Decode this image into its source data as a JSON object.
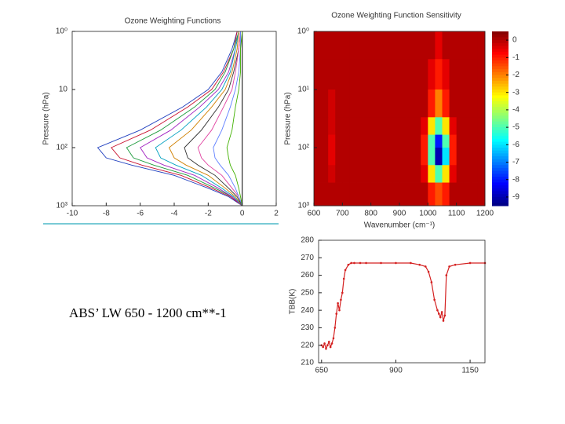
{
  "caption": "ABS’ LW 650 - 1200 cm**-1",
  "chart_data": [
    {
      "type": "profile",
      "title": "Ozone Weighting Functions",
      "ylabel": "Pressure (hPa)",
      "xlim": [
        -10,
        2
      ],
      "xticks": [
        -10,
        -8,
        -6,
        -4,
        -2,
        0,
        2
      ],
      "ylim": [
        1,
        1000
      ],
      "ylog": true,
      "yinvert": true,
      "yticks": [
        {
          "value": 1,
          "label": "10⁰"
        },
        10,
        {
          "value": 100,
          "label": "10²"
        },
        {
          "value": 1000,
          "label": "10³"
        }
      ],
      "y": [
        1,
        2,
        5,
        10,
        20,
        50,
        100,
        150,
        200,
        300,
        500,
        700,
        1000
      ],
      "series": [
        {
          "color": "#1f3fbf",
          "values": [
            -0.3,
            -0.6,
            -1.2,
            -2,
            -3.5,
            -6,
            -8.5,
            -8,
            -6.5,
            -4,
            -2,
            -0.8,
            0
          ]
        },
        {
          "color": "#c8102e",
          "values": [
            -0.3,
            -0.5,
            -1.1,
            -1.8,
            -3.2,
            -5.4,
            -7.7,
            -7.2,
            -5.9,
            -3.6,
            -1.8,
            -0.7,
            0
          ]
        },
        {
          "color": "#1a9a3a",
          "values": [
            -0.2,
            -0.5,
            -1,
            -1.6,
            -2.8,
            -4.8,
            -6.8,
            -6.4,
            -5.2,
            -3.2,
            -1.6,
            -0.6,
            0
          ]
        },
        {
          "color": "#a020c0",
          "values": [
            -0.2,
            -0.4,
            -0.8,
            -1.4,
            -2.5,
            -4.2,
            -6,
            -5.6,
            -4.6,
            -2.8,
            -1.4,
            -0.6,
            0
          ]
        },
        {
          "color": "#00a0c0",
          "values": [
            -0.2,
            -0.4,
            -0.7,
            -1.2,
            -2.1,
            -3.6,
            -5.1,
            -4.8,
            -3.9,
            -2.4,
            -1.2,
            -0.5,
            0
          ]
        },
        {
          "color": "#d08000",
          "values": [
            -0.2,
            -0.3,
            -0.6,
            -1,
            -1.8,
            -3,
            -4.3,
            -4,
            -3.3,
            -2,
            -1,
            -0.4,
            0
          ]
        },
        {
          "color": "#303030",
          "values": [
            -0.1,
            -0.2,
            -0.5,
            -0.8,
            -1.4,
            -2.4,
            -3.4,
            -3.2,
            -2.6,
            -1.6,
            -0.8,
            -0.3,
            0
          ]
        },
        {
          "color": "#e040a0",
          "values": [
            -0.1,
            -0.2,
            -0.4,
            -0.6,
            -1.1,
            -1.8,
            -2.6,
            -2.4,
            -2,
            -1.2,
            -0.6,
            -0.2,
            0
          ]
        },
        {
          "color": "#6080ff",
          "values": [
            -0.1,
            -0.1,
            -0.2,
            -0.4,
            -0.7,
            -1.2,
            -1.7,
            -1.6,
            -1.3,
            -0.8,
            -0.4,
            -0.2,
            0
          ]
        },
        {
          "color": "#40b000",
          "values": [
            0,
            -0.1,
            -0.1,
            -0.2,
            -0.4,
            -0.6,
            -0.9,
            -0.8,
            -0.7,
            -0.4,
            -0.2,
            -0.1,
            0
          ]
        }
      ]
    },
    {
      "type": "heatmap",
      "title": "Ozone Weighting Function Sensitivity",
      "xlabel": "Wavenumber (cm⁻¹)",
      "ylabel": "Pressure (hPa)",
      "xlim": [
        600,
        1200
      ],
      "xticks": [
        600,
        700,
        800,
        900,
        1000,
        1100,
        1200
      ],
      "ylim": [
        1,
        1000
      ],
      "ylog": true,
      "yinvert": true,
      "yticks": [
        {
          "value": 1,
          "label": "10⁰"
        },
        {
          "value": 10,
          "label": "10¹"
        },
        {
          "value": 100,
          "label": "10²"
        },
        {
          "value": 1000,
          "label": "10³"
        }
      ],
      "xbins": [
        600,
        625,
        650,
        675,
        700,
        725,
        750,
        775,
        800,
        825,
        850,
        875,
        900,
        925,
        950,
        975,
        1000,
        1025,
        1050,
        1075,
        1100,
        1125,
        1150,
        1175,
        1200
      ],
      "ybins": [
        1,
        3,
        10,
        30,
        60,
        100,
        200,
        400,
        1000
      ],
      "clim": [
        -9.5,
        0.5
      ],
      "cticks": [
        0,
        -1,
        -2,
        -3,
        -4,
        -5,
        -6,
        -7,
        -8,
        -9
      ],
      "values": [
        [
          0,
          0,
          0,
          0,
          0,
          0,
          0,
          0,
          0,
          0,
          0,
          0,
          0,
          0,
          0,
          0,
          0,
          -0.5,
          0,
          0,
          0,
          0,
          0,
          0
        ],
        [
          0,
          0,
          0,
          0,
          0,
          0,
          0,
          0,
          0,
          0,
          0,
          0,
          0,
          0,
          0,
          0,
          -0.5,
          -1,
          -0.5,
          0,
          0,
          0,
          0,
          0
        ],
        [
          0,
          0,
          -0.3,
          0,
          0,
          0,
          0,
          0,
          0,
          0,
          0,
          0,
          0,
          0,
          0,
          0,
          -1,
          -2,
          -1,
          0,
          0,
          0,
          0,
          0
        ],
        [
          0,
          0,
          -0.3,
          0,
          0,
          0,
          0,
          0,
          0,
          0,
          0,
          0,
          0,
          0,
          0,
          -0.5,
          -3,
          -5,
          -3,
          -0.5,
          0,
          0,
          0,
          0
        ],
        [
          0,
          0,
          -0.5,
          0,
          0,
          0,
          0,
          0,
          0,
          0,
          0,
          0,
          0,
          0,
          0,
          -1,
          -5,
          -8,
          -5,
          -1,
          0,
          0,
          0,
          0
        ],
        [
          0,
          0,
          -0.5,
          0,
          0,
          0,
          0,
          0,
          0,
          0,
          0,
          0,
          0,
          0,
          0,
          -1,
          -5,
          -9,
          -6,
          -1,
          0,
          0,
          0,
          0
        ],
        [
          0,
          0,
          -0.3,
          0,
          0,
          0,
          0,
          0,
          0,
          0,
          0,
          0,
          0,
          0,
          0,
          -0.5,
          -3,
          -5,
          -3,
          -0.5,
          0,
          0,
          0,
          0
        ],
        [
          0,
          0,
          0,
          0,
          0,
          0,
          0,
          0,
          0,
          0,
          0,
          0,
          0,
          0,
          0,
          0,
          -1,
          -1.5,
          -1,
          0,
          0,
          0,
          0,
          0
        ]
      ]
    },
    {
      "type": "line",
      "ylabel": "TBB(K)",
      "color": "#d42020",
      "xlim": [
        640,
        1200
      ],
      "xticks": [
        650,
        900,
        1150
      ],
      "ylim": [
        210,
        280
      ],
      "yticks": [
        210,
        220,
        230,
        240,
        250,
        260,
        270,
        280
      ],
      "x": [
        650,
        655,
        660,
        665,
        670,
        675,
        680,
        685,
        690,
        695,
        700,
        705,
        710,
        715,
        720,
        725,
        730,
        740,
        750,
        760,
        780,
        800,
        850,
        900,
        950,
        980,
        1000,
        1010,
        1020,
        1030,
        1040,
        1045,
        1050,
        1055,
        1060,
        1065,
        1070,
        1080,
        1100,
        1150,
        1200
      ],
      "values": [
        220,
        219,
        221,
        218,
        220,
        222,
        219,
        221,
        224,
        230,
        238,
        244,
        240,
        246,
        250,
        258,
        263,
        266,
        267,
        267,
        267,
        267,
        267,
        267,
        267,
        266,
        265,
        262,
        256,
        246,
        240,
        238,
        236,
        239,
        234,
        237,
        260,
        265,
        266,
        267,
        267
      ]
    }
  ]
}
